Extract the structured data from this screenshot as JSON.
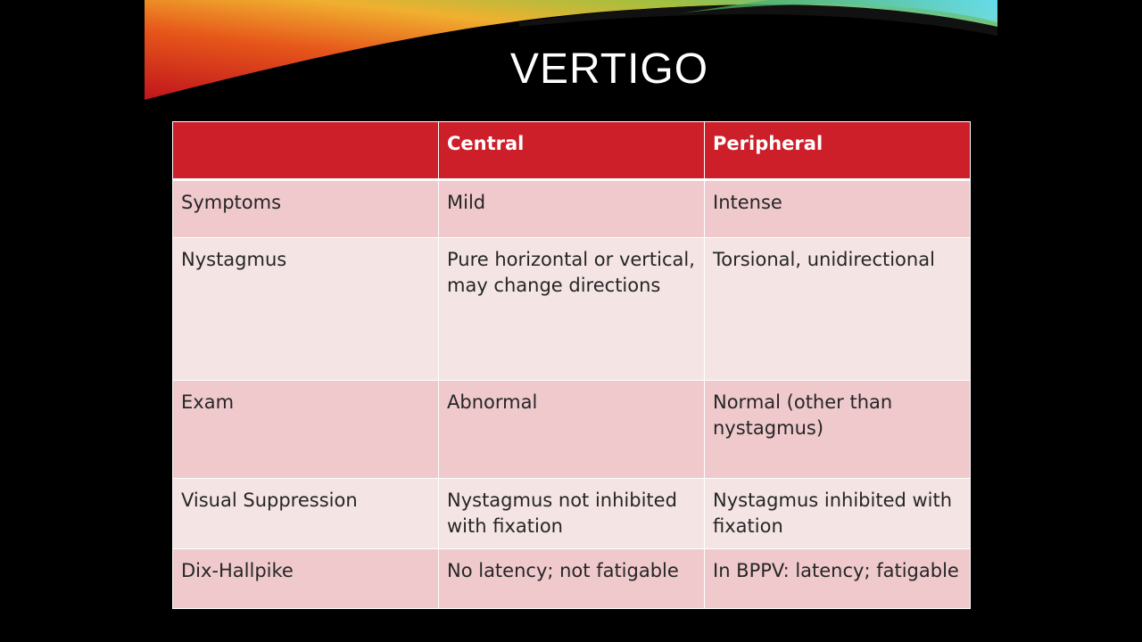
{
  "title": "VERTIGO",
  "table": {
    "header": [
      "Central",
      "Peripheral"
    ],
    "rows": [
      [
        "Symptoms",
        "Mild",
        "Intense"
      ],
      [
        "Nystagmus",
        "Pure horizontal or vertical, may change directions",
        "Torsional, unidirectional"
      ],
      [
        "Exam",
        "Abnormal",
        "Normal (other than nystagmus)"
      ],
      [
        "Visual Suppression",
        "Nystagmus not inhibited with fixation",
        "Nystagmus inhibited with fixation"
      ],
      [
        "Dix-Hallpike",
        "No latency; not fatigable",
        "In BPPV: latency; fatigable"
      ]
    ]
  }
}
